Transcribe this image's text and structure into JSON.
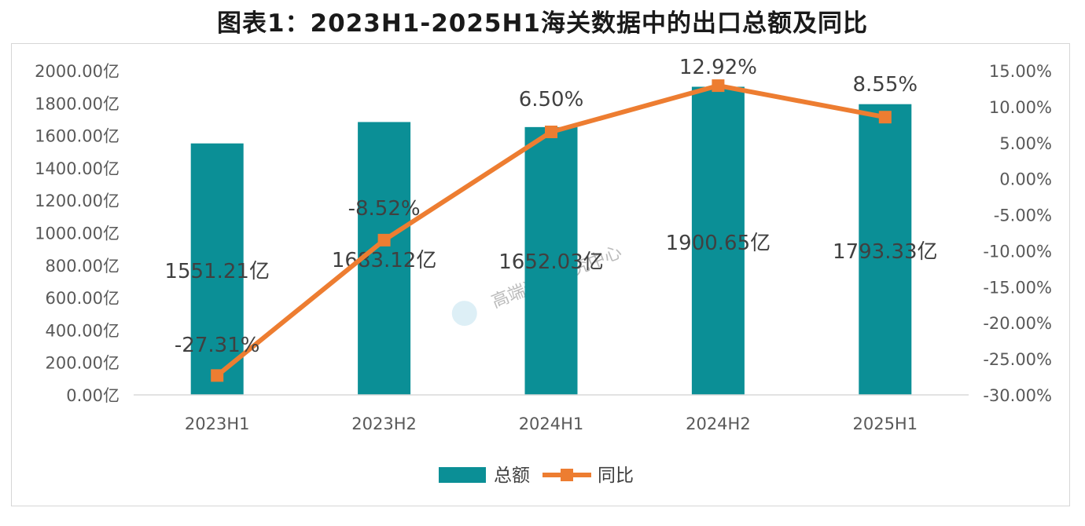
{
  "title": "图表1：2023H1-2025H1海关数据中的出口总额及同比",
  "watermark": "高端装备研究中心",
  "colors": {
    "bar": "#0b8f96",
    "line": "#ed7d31",
    "axis_text": "#595959",
    "border": "#d6d6d6"
  },
  "chart_data": {
    "type": "bar",
    "categories": [
      "2023H1",
      "2023H2",
      "2024H1",
      "2024H2",
      "2025H1"
    ],
    "series": [
      {
        "name": "总额",
        "type": "bar",
        "axis": "left",
        "values": [
          1551.21,
          1683.12,
          1652.03,
          1900.65,
          1793.33
        ],
        "labels": [
          "1551.21亿",
          "1683.12亿",
          "1652.03亿",
          "1900.65亿",
          "1793.33亿"
        ]
      },
      {
        "name": "同比",
        "type": "line",
        "axis": "right",
        "values": [
          -27.31,
          -8.52,
          6.5,
          12.92,
          8.55
        ],
        "labels": [
          "-27.31%",
          "-8.52%",
          "6.50%",
          "12.92%",
          "8.55%"
        ]
      }
    ],
    "y_left": {
      "range": [
        0,
        2000
      ],
      "ticks": [
        "0.00亿",
        "200.00亿",
        "400.00亿",
        "600.00亿",
        "800.00亿",
        "1000.00亿",
        "1200.00亿",
        "1400.00亿",
        "1600.00亿",
        "1800.00亿",
        "2000.00亿"
      ]
    },
    "y_right": {
      "range": [
        -30,
        15
      ],
      "ticks": [
        "-30.00%",
        "-25.00%",
        "-20.00%",
        "-15.00%",
        "-10.00%",
        "-5.00%",
        "0.00%",
        "5.00%",
        "10.00%",
        "15.00%"
      ]
    },
    "grid": false,
    "legend": "bottom-center"
  }
}
